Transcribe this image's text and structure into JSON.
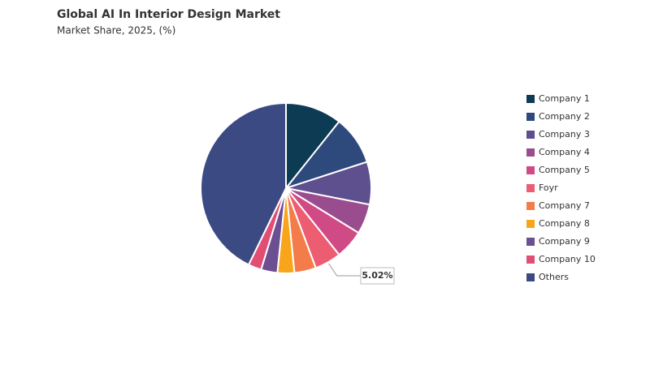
{
  "chart_data": {
    "type": "pie",
    "title": "Global AI In Interior Design Market",
    "subtitle": "Market Share, 2025, (%)",
    "categories": [
      "Company 1",
      "Company 2",
      "Company 3",
      "Company 4",
      "Company 5",
      "Foyr",
      "Company 7",
      "Company 8",
      "Company 9",
      "Company 10",
      "Others"
    ],
    "values": [
      10.7,
      9.3,
      8.1,
      5.7,
      5.5,
      5.02,
      4.1,
      3.2,
      3.1,
      2.5,
      42.78
    ],
    "value_labels": [
      null,
      null,
      null,
      null,
      null,
      "5.02%",
      null,
      null,
      null,
      null,
      null
    ],
    "colors": [
      "#0d3b54",
      "#2e4a7d",
      "#5e4f8f",
      "#9a4d8e",
      "#d04b86",
      "#ec5d72",
      "#f47c4a",
      "#f8a51c",
      "#6b4f91",
      "#e04e74",
      "#3b4a82"
    ],
    "legend": "right"
  }
}
